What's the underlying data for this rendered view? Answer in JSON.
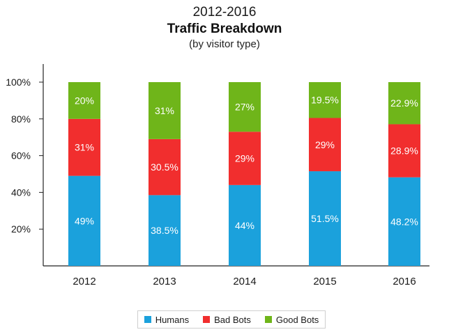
{
  "chart_data": {
    "type": "bar",
    "stacked": true,
    "title_line1": "2012-2016",
    "title": "Traffic Breakdown",
    "subtitle": "(by visitor type)",
    "categories": [
      "2012",
      "2013",
      "2014",
      "2015",
      "2016"
    ],
    "series": [
      {
        "name": "Humans",
        "color": "#1ba1dc",
        "values": [
          49,
          38.5,
          44,
          51.5,
          48.2
        ],
        "labels": [
          "49%",
          "38.5%",
          "44%",
          "51.5%",
          "48.2%"
        ]
      },
      {
        "name": "Bad Bots",
        "color": "#f12e2e",
        "values": [
          31,
          30.5,
          29,
          29,
          28.9
        ],
        "labels": [
          "31%",
          "30.5%",
          "29%",
          "29%",
          "28.9%"
        ]
      },
      {
        "name": "Good Bots",
        "color": "#6fb51a",
        "values": [
          20,
          31,
          27,
          19.5,
          22.9
        ],
        "labels": [
          "20%",
          "31%",
          "27%",
          "19.5%",
          "22.9%"
        ]
      }
    ],
    "y_ticks": [
      {
        "value": 20,
        "label": "20%"
      },
      {
        "value": 40,
        "label": "40%"
      },
      {
        "value": 60,
        "label": "60%"
      },
      {
        "value": 80,
        "label": "80%"
      },
      {
        "value": 100,
        "label": "100%"
      }
    ],
    "ylim": [
      0,
      100
    ],
    "xlabel": "",
    "ylabel": "",
    "grid": false,
    "legend_position": "bottom"
  }
}
